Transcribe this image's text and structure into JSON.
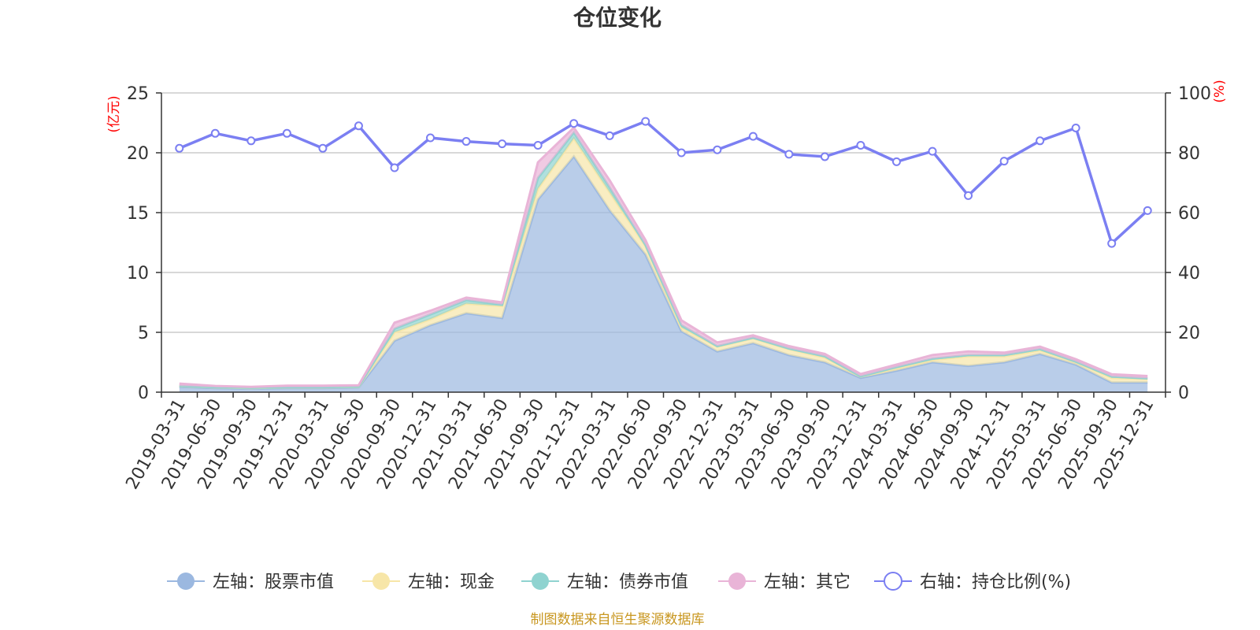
{
  "chart_data": {
    "type": "area",
    "title": "仓位变化",
    "left_axis": {
      "unit": "(亿元)",
      "ylim": [
        0,
        25
      ],
      "ticks": [
        0,
        5,
        10,
        15,
        20,
        25
      ]
    },
    "right_axis": {
      "unit": "(%)",
      "ylim": [
        0,
        100
      ],
      "ticks": [
        0,
        20,
        40,
        60,
        80,
        100
      ]
    },
    "categories": [
      "2019-03-31",
      "2019-06-30",
      "2019-09-30",
      "2019-12-31",
      "2020-03-31",
      "2020-06-30",
      "2020-09-30",
      "2020-12-31",
      "2021-03-31",
      "2021-06-30",
      "2021-09-30",
      "2021-12-31",
      "2022-03-31",
      "2022-06-30",
      "2022-09-30",
      "2022-12-31",
      "2023-03-31",
      "2023-06-30",
      "2023-09-30",
      "2023-12-31",
      "2024-03-31",
      "2024-06-30",
      "2024-09-30",
      "2024-12-31",
      "2025-03-31",
      "2025-06-30",
      "2025-09-30",
      "2025-12-31"
    ],
    "series": [
      {
        "name": "左轴：股票市值",
        "axis": "left",
        "stack": true,
        "color": "#9bb8e0",
        "values": [
          0.45,
          0.35,
          0.3,
          0.35,
          0.35,
          0.4,
          4.3,
          5.6,
          6.6,
          6.2,
          16.1,
          19.7,
          15.2,
          11.5,
          5.1,
          3.4,
          4.1,
          3.1,
          2.5,
          1.2,
          1.8,
          2.5,
          2.2,
          2.5,
          3.2,
          2.3,
          0.8,
          0.8
        ]
      },
      {
        "name": "左轴：现金",
        "axis": "left",
        "stack": true,
        "color": "#f7e6a8",
        "values": [
          0.05,
          0.05,
          0.05,
          0.05,
          0.05,
          0.05,
          0.7,
          0.5,
          0.8,
          1.0,
          0.9,
          1.5,
          1.5,
          0.7,
          0.3,
          0.4,
          0.4,
          0.5,
          0.4,
          0.1,
          0.2,
          0.2,
          0.8,
          0.5,
          0.3,
          0.2,
          0.4,
          0.3
        ]
      },
      {
        "name": "左轴：债券市值",
        "axis": "left",
        "stack": true,
        "color": "#8fd3d0",
        "values": [
          0.02,
          0.02,
          0.02,
          0.02,
          0.02,
          0.02,
          0.3,
          0.4,
          0.3,
          0.1,
          0.9,
          0.5,
          0.4,
          0.1,
          0.2,
          0.05,
          0.05,
          0.05,
          0.1,
          0.02,
          0.1,
          0.1,
          0.1,
          0.1,
          0.1,
          0.05,
          0.1,
          0.05
        ]
      },
      {
        "name": "左轴：其它",
        "axis": "left",
        "stack": true,
        "color": "#e9b4d7",
        "values": [
          0.2,
          0.1,
          0.08,
          0.12,
          0.12,
          0.1,
          0.5,
          0.3,
          0.2,
          0.2,
          1.3,
          0.4,
          0.6,
          0.4,
          0.4,
          0.3,
          0.2,
          0.2,
          0.2,
          0.2,
          0.2,
          0.3,
          0.3,
          0.2,
          0.2,
          0.2,
          0.2,
          0.2
        ]
      },
      {
        "name": "右轴：持仓比例(%)",
        "axis": "right",
        "type": "line",
        "color": "#7b7ff2",
        "values": [
          81.5,
          86.5,
          84,
          86.5,
          81.5,
          89,
          75,
          85,
          83.8,
          83,
          82.5,
          89.8,
          85.7,
          90.5,
          80,
          81,
          85.5,
          79.5,
          78.7,
          82.5,
          77,
          80.5,
          65.7,
          77.2,
          84,
          88.3,
          49.7,
          60.7
        ]
      }
    ],
    "source": "制图数据来自恒生聚源数据库"
  }
}
